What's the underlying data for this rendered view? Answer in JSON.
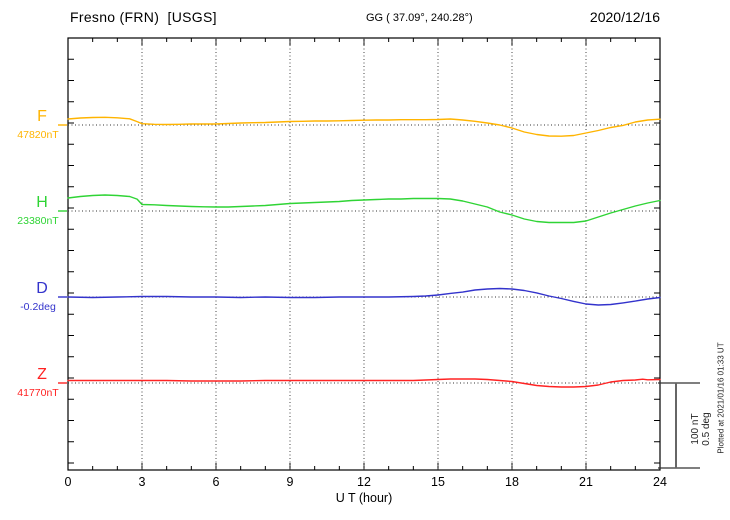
{
  "header": {
    "station": "Fresno (FRN)  [USGS]",
    "coords": "GG ( 37.09°, 240.28°)",
    "date": "2020/12/16"
  },
  "side": {
    "scale_label_1": "100 nT",
    "scale_label_2": "0.5 deg",
    "plotted_note": "Plotted at 2021/01/16 01:33 UT"
  },
  "chart_data": {
    "type": "line",
    "title": "Fresno (FRN) [USGS] magnetogram 2020/12/16",
    "xlabel": "U T (hour)",
    "x_range": [
      0,
      24
    ],
    "x_ticks": [
      0,
      3,
      6,
      9,
      12,
      15,
      18,
      21,
      24
    ],
    "grid": "vertical dotted lines every 3 h; dotted horizontal baseline per channel; minor ticks every hour (x) and every 25 nT (y)",
    "legend_position": "left channel labels",
    "scale_bar": {
      "span_nT": 100,
      "span_deg": 0.5
    },
    "series": [
      {
        "name": "F",
        "baseline_label": "47820nT",
        "baseline_value": 47820,
        "unit": "nT",
        "color": "#ffb400",
        "points": [
          [
            0,
            7
          ],
          [
            0.5,
            8.2
          ],
          [
            1,
            8.8
          ],
          [
            1.5,
            9
          ],
          [
            2,
            8.5
          ],
          [
            2.5,
            7.3
          ],
          [
            2.8,
            4
          ],
          [
            3,
            1.5
          ],
          [
            3.5,
            0.8
          ],
          [
            4,
            0.6
          ],
          [
            4.5,
            0.8
          ],
          [
            5,
            1.2
          ],
          [
            5.5,
            1.2
          ],
          [
            6,
            1.2
          ],
          [
            6.5,
            1.8
          ],
          [
            7,
            2.4
          ],
          [
            7.5,
            2.7
          ],
          [
            8,
            3
          ],
          [
            8.5,
            3.5
          ],
          [
            9,
            4.1
          ],
          [
            9.5,
            4.4
          ],
          [
            10,
            4.7
          ],
          [
            10.5,
            4.7
          ],
          [
            11,
            5
          ],
          [
            11.5,
            5.3
          ],
          [
            12,
            5.6
          ],
          [
            12.5,
            5.9
          ],
          [
            13,
            5.9
          ],
          [
            13.5,
            6.2
          ],
          [
            14,
            6.2
          ],
          [
            14.5,
            6.2
          ],
          [
            15,
            6.5
          ],
          [
            15.5,
            7
          ],
          [
            16,
            5.9
          ],
          [
            16.5,
            4.4
          ],
          [
            17,
            2.4
          ],
          [
            17.5,
            0
          ],
          [
            18,
            -3.5
          ],
          [
            18.5,
            -8.2
          ],
          [
            19,
            -11.2
          ],
          [
            19.5,
            -12.9
          ],
          [
            20,
            -13.2
          ],
          [
            20.5,
            -12.4
          ],
          [
            21,
            -9.4
          ],
          [
            21.5,
            -6.5
          ],
          [
            22,
            -3
          ],
          [
            22.5,
            -0.5
          ],
          [
            23,
            3.5
          ],
          [
            23.5,
            5.9
          ],
          [
            24,
            6.8
          ]
        ]
      },
      {
        "name": "H",
        "baseline_label": "23380nT",
        "baseline_value": 23380,
        "unit": "nT",
        "color": "#2fd435",
        "points": [
          [
            0,
            15.3
          ],
          [
            0.5,
            17.1
          ],
          [
            1,
            18.2
          ],
          [
            1.5,
            18.8
          ],
          [
            2,
            18.2
          ],
          [
            2.5,
            17.1
          ],
          [
            2.8,
            14
          ],
          [
            3,
            7.6
          ],
          [
            3.5,
            7.3
          ],
          [
            4,
            6.5
          ],
          [
            4.5,
            5.9
          ],
          [
            5,
            5.3
          ],
          [
            5.5,
            4.9
          ],
          [
            6,
            4.7
          ],
          [
            6.5,
            4.7
          ],
          [
            7,
            5.3
          ],
          [
            7.5,
            5.9
          ],
          [
            8,
            6.5
          ],
          [
            8.5,
            7.6
          ],
          [
            9,
            8.8
          ],
          [
            9.5,
            9.4
          ],
          [
            10,
            10
          ],
          [
            10.5,
            10.6
          ],
          [
            11,
            11.2
          ],
          [
            11.5,
            12.4
          ],
          [
            12,
            12.9
          ],
          [
            12.5,
            13.5
          ],
          [
            13,
            14.1
          ],
          [
            13.5,
            14.1
          ],
          [
            14,
            14.7
          ],
          [
            14.5,
            14.7
          ],
          [
            15,
            14.7
          ],
          [
            15.5,
            14.1
          ],
          [
            16,
            11.8
          ],
          [
            16.5,
            8.2
          ],
          [
            17,
            4.7
          ],
          [
            17.5,
            -1.2
          ],
          [
            18,
            -4.7
          ],
          [
            18.5,
            -9.4
          ],
          [
            19,
            -12.4
          ],
          [
            19.5,
            -13.5
          ],
          [
            20,
            -13.5
          ],
          [
            20.5,
            -13.5
          ],
          [
            21,
            -11.8
          ],
          [
            21.5,
            -7.1
          ],
          [
            22,
            -2.4
          ],
          [
            22.5,
            1.8
          ],
          [
            23,
            5.9
          ],
          [
            23.5,
            9.4
          ],
          [
            24,
            12.4
          ]
        ]
      },
      {
        "name": "D",
        "baseline_label": "-0.2deg",
        "baseline_value": -0.2,
        "unit": "deg",
        "color": "#3333cc",
        "points": [
          [
            0,
            0
          ],
          [
            1,
            -0.003
          ],
          [
            2,
            0
          ],
          [
            3,
            0.003
          ],
          [
            4,
            0.003
          ],
          [
            5,
            0
          ],
          [
            6,
            0
          ],
          [
            7,
            -0.003
          ],
          [
            8,
            0
          ],
          [
            9,
            -0.003
          ],
          [
            10,
            -0.003
          ],
          [
            11,
            0
          ],
          [
            12,
            0
          ],
          [
            13,
            0
          ],
          [
            14,
            0.003
          ],
          [
            14.5,
            0.006
          ],
          [
            15,
            0.012
          ],
          [
            15.5,
            0.021
          ],
          [
            16,
            0.029
          ],
          [
            16.5,
            0.041
          ],
          [
            17,
            0.047
          ],
          [
            17.5,
            0.05
          ],
          [
            18,
            0.047
          ],
          [
            18.5,
            0.038
          ],
          [
            19,
            0.024
          ],
          [
            19.5,
            0.006
          ],
          [
            20,
            -0.009
          ],
          [
            20.5,
            -0.026
          ],
          [
            21,
            -0.041
          ],
          [
            21.5,
            -0.047
          ],
          [
            22,
            -0.044
          ],
          [
            22.5,
            -0.035
          ],
          [
            23,
            -0.024
          ],
          [
            23.5,
            -0.012
          ],
          [
            24,
            -0.003
          ]
        ]
      },
      {
        "name": "Z",
        "baseline_label": "41770nT",
        "baseline_value": 41770,
        "unit": "nT",
        "color": "#ff2222",
        "points": [
          [
            0,
            2.9
          ],
          [
            1,
            2.9
          ],
          [
            2,
            2.9
          ],
          [
            3,
            2.9
          ],
          [
            4,
            2.9
          ],
          [
            5,
            2.4
          ],
          [
            6,
            2.4
          ],
          [
            7,
            2.4
          ],
          [
            8,
            2.9
          ],
          [
            9,
            2.9
          ],
          [
            10,
            2.9
          ],
          [
            11,
            2.9
          ],
          [
            12,
            2.9
          ],
          [
            13,
            2.9
          ],
          [
            14,
            2.9
          ],
          [
            14.5,
            3.5
          ],
          [
            15,
            4.1
          ],
          [
            15.5,
            4.7
          ],
          [
            16,
            4.7
          ],
          [
            16.5,
            4.7
          ],
          [
            17,
            4.1
          ],
          [
            17.5,
            2.9
          ],
          [
            18,
            1.8
          ],
          [
            18.5,
            -0.6
          ],
          [
            19,
            -2.9
          ],
          [
            19.5,
            -4.1
          ],
          [
            20,
            -4.7
          ],
          [
            20.5,
            -4.7
          ],
          [
            21,
            -4.1
          ],
          [
            21.5,
            -2.4
          ],
          [
            22,
            1.2
          ],
          [
            22.5,
            2.9
          ],
          [
            23,
            3.5
          ],
          [
            23.3,
            4.5
          ],
          [
            23.5,
            3.8
          ],
          [
            24,
            4.1
          ]
        ]
      }
    ]
  }
}
